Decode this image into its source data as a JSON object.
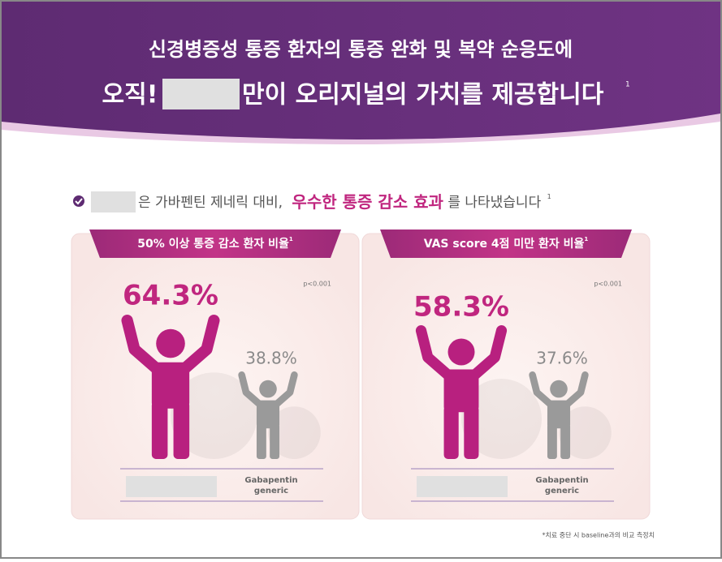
{
  "header": {
    "line1": "신경병증성 통증 환자의 통증 완화 및 복약 순응도에",
    "line2_prefix": "오직!",
    "line2_suffix": "만이 오리지널의 가치를 제공합니다",
    "line2_ref": "1"
  },
  "subheading": {
    "text": "은 가바펜틴 제네릭 대비,",
    "highlight": "우수한 통증 감소 효과",
    "tail": "를 나타냈습니다",
    "ref": "1"
  },
  "panels": [
    {
      "title": "50% 이상 통증 감소 환자 비율",
      "ref": "1",
      "p_value": "p<0.001",
      "product_value": "64.3%",
      "generic_value": "38.8%",
      "generic_label": [
        "Gabapentin",
        "generic"
      ]
    },
    {
      "title": "VAS score 4점 미만 환자 비율",
      "ref": "1",
      "p_value": "p<0.001",
      "product_value": "58.3%",
      "generic_value": "37.6%",
      "generic_label": [
        "Gabapentin",
        "generic"
      ]
    }
  ],
  "footnote": "*치료 중단 시 baseline과의 비교 측정치"
}
